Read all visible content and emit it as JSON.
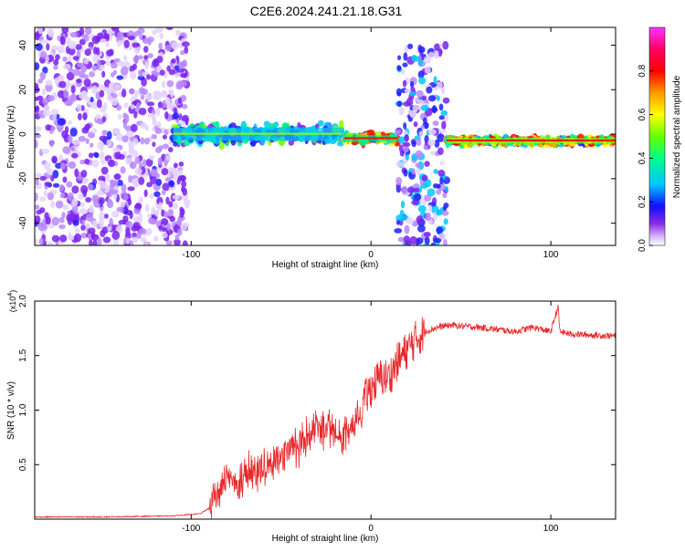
{
  "title": "C2E6.2024.241.21.18.G31",
  "chart_data": [
    {
      "type": "heatmap",
      "xlabel": "Height of straight line (km)",
      "ylabel": "Frequency (Hz)",
      "xlim": [
        -187,
        136
      ],
      "ylim": [
        -50,
        48
      ],
      "xticks": [
        -100,
        0,
        100
      ],
      "yticks": [
        -40,
        -20,
        0,
        20,
        40
      ],
      "ytick_labels": [
        "-40",
        "-20",
        "0",
        "20",
        "40"
      ],
      "xtick_labels": [
        "-100",
        "0",
        "100"
      ],
      "colorbar": {
        "label": "Normalized spectral amplitude",
        "range": [
          0,
          1
        ],
        "ticks": [
          0.0,
          0.2,
          0.4,
          0.6,
          0.8
        ],
        "tick_labels": [
          "0.0",
          "0.2",
          "0.4",
          "0.6",
          "0.8"
        ],
        "colors": [
          "#ffffff",
          "#c8a0ff",
          "#6a00ff",
          "#0000ff",
          "#00c8ff",
          "#00ff80",
          "#80ff00",
          "#ffff00",
          "#ff8000",
          "#ff0000",
          "#ff0080",
          "#ff40ff"
        ]
      },
      "regions": [
        {
          "x_range": [
            -187,
            -102
          ],
          "f_range": [
            -50,
            48
          ],
          "kind": "scattered noise",
          "peak_amplitude": 0.25
        },
        {
          "x_range": [
            -110,
            -15
          ],
          "f_center": 0,
          "f_width": 12,
          "kind": "dense signal",
          "peak_amplitude": 0.6
        },
        {
          "x_range": [
            -15,
            15
          ],
          "f_center": -2,
          "f_width": 6,
          "kind": "narrow signal",
          "peak_amplitude": 0.9
        },
        {
          "x_range": [
            15,
            42
          ],
          "f_range": [
            -50,
            40
          ],
          "kind": "broadband burst",
          "peak_amplitude": 0.4
        },
        {
          "x_range": [
            42,
            136
          ],
          "f_center": -3,
          "f_width": 5,
          "kind": "steady line",
          "peak_amplitude": 0.95
        }
      ]
    },
    {
      "type": "line",
      "xlabel": "Height of straight line (km)",
      "ylabel": "SNR (10 * v/v)",
      "scale_label": "(x10",
      "scale_exponent": "4",
      "scale_close": ")",
      "xlim": [
        -187,
        136
      ],
      "ylim": [
        0,
        2.0
      ],
      "xticks": [
        -100,
        0,
        100
      ],
      "xtick_labels": [
        "-100",
        "0",
        "100"
      ],
      "yticks": [
        0.5,
        1.0,
        1.5,
        2.0
      ],
      "ytick_labels": [
        "0.5",
        "1.0",
        "1.5",
        "2.0"
      ],
      "series": [
        {
          "color": "#e8282a",
          "points": [
            [
              -187,
              0.02
            ],
            [
              -150,
              0.02
            ],
            [
              -110,
              0.03
            ],
            [
              -95,
              0.05
            ],
            [
              -90,
              0.1
            ],
            [
              -85,
              0.3
            ],
            [
              -80,
              0.4
            ],
            [
              -75,
              0.35
            ],
            [
              -70,
              0.45
            ],
            [
              -65,
              0.5
            ],
            [
              -60,
              0.5
            ],
            [
              -55,
              0.55
            ],
            [
              -50,
              0.6
            ],
            [
              -45,
              0.65
            ],
            [
              -40,
              0.7
            ],
            [
              -35,
              0.8
            ],
            [
              -30,
              0.9
            ],
            [
              -25,
              0.85
            ],
            [
              -20,
              0.9
            ],
            [
              -15,
              0.8
            ],
            [
              -10,
              0.9
            ],
            [
              -5,
              1.05
            ],
            [
              0,
              1.2
            ],
            [
              5,
              1.3
            ],
            [
              10,
              1.3
            ],
            [
              15,
              1.45
            ],
            [
              20,
              1.55
            ],
            [
              25,
              1.65
            ],
            [
              30,
              1.72
            ],
            [
              35,
              1.75
            ],
            [
              40,
              1.77
            ],
            [
              45,
              1.78
            ],
            [
              50,
              1.77
            ],
            [
              60,
              1.76
            ],
            [
              70,
              1.74
            ],
            [
              80,
              1.72
            ],
            [
              90,
              1.76
            ],
            [
              100,
              1.72
            ],
            [
              104,
              1.95
            ],
            [
              105,
              1.72
            ],
            [
              110,
              1.7
            ],
            [
              120,
              1.69
            ],
            [
              136,
              1.68
            ]
          ]
        }
      ]
    }
  ]
}
